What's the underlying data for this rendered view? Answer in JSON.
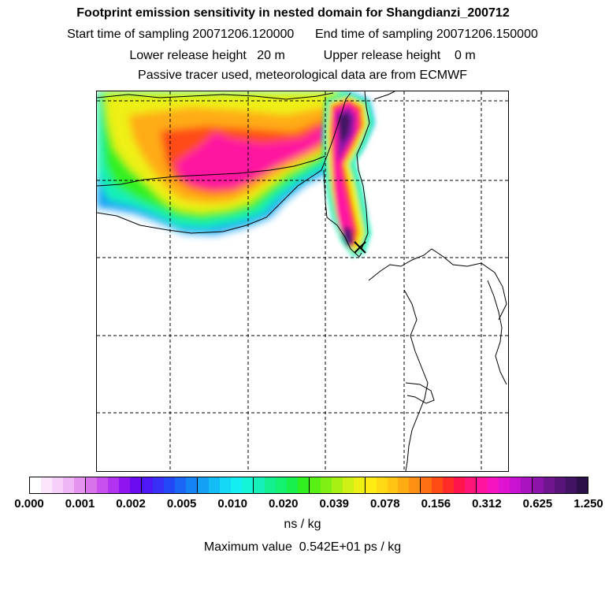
{
  "header": {
    "title": "Footprint emission sensitivity in nested domain for Shangdianzi_200712",
    "line2": "Start time of sampling 20071206.120000      End time of sampling 20071206.150000",
    "line3": "Lower release height   20 m           Upper release height    0 m",
    "line4": "Passive tracer used, meteorological data are from ECMWF"
  },
  "colorbar": {
    "tick_labels": [
      "0.000",
      "0.001",
      "0.002",
      "0.005",
      "0.010",
      "0.020",
      "0.039",
      "0.078",
      "0.156",
      "0.312",
      "0.625",
      "1.250"
    ],
    "colors": [
      "#ffffff",
      "#fbe6fb",
      "#f6d0f8",
      "#eeb6f4",
      "#e493ee",
      "#d873ea",
      "#c850ee",
      "#b331f0",
      "#8f14ef",
      "#6a0cef",
      "#4d18f5",
      "#3830f6",
      "#2348f6",
      "#1a66f5",
      "#1484f5",
      "#14a0f5",
      "#14bcf5",
      "#14d8f5",
      "#14eef0",
      "#14f5d8",
      "#14f0b8",
      "#14f090",
      "#14f070",
      "#18f04c",
      "#30f020",
      "#58f014",
      "#80f014",
      "#a8f014",
      "#d0f014",
      "#eef014",
      "#ffec14",
      "#ffd814",
      "#ffc414",
      "#ffac14",
      "#ff9014",
      "#ff7014",
      "#ff4c14",
      "#ff2c28",
      "#ff144c",
      "#ff1478",
      "#ff14a0",
      "#f514c0",
      "#e014d0",
      "#c814d0",
      "#a814c0",
      "#8c14a8",
      "#701490",
      "#581478",
      "#401460",
      "#2c1048"
    ],
    "units": "ns / kg"
  },
  "footer": {
    "max_value": "Maximum value  0.542E+01 ps / kg"
  },
  "map": {
    "receptor_marker": "x-marker",
    "gridline_style": "dashed",
    "coastline_color": "#000000"
  }
}
